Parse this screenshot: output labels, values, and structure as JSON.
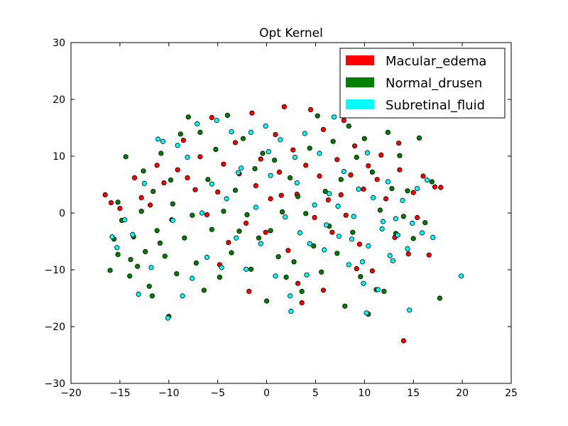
{
  "chart_data": {
    "type": "scatter",
    "title": "Opt Kernel",
    "xlabel": "",
    "ylabel": "",
    "xlim": [
      -20,
      25
    ],
    "ylim": [
      -30,
      30
    ],
    "xticks": [
      -20,
      -15,
      -10,
      -5,
      0,
      5,
      10,
      15,
      20,
      25
    ],
    "yticks": [
      -30,
      -20,
      -10,
      0,
      10,
      20,
      30
    ],
    "xtick_labels": [
      "−20",
      "−15",
      "−10",
      "−5",
      "0",
      "5",
      "10",
      "15",
      "20",
      "25"
    ],
    "ytick_labels": [
      "−30",
      "−20",
      "−10",
      "0",
      "10",
      "20",
      "30"
    ],
    "grid": false,
    "legend_position": "top-right",
    "series": [
      {
        "name": "Macular_edema",
        "color": "#ff0000",
        "points": [
          [
            -16.5,
            3.2
          ],
          [
            -15.9,
            1.8
          ],
          [
            -15.0,
            0.8
          ],
          [
            -13.5,
            6.2
          ],
          [
            -12.8,
            2.7
          ],
          [
            -11.9,
            1.4
          ],
          [
            -11.2,
            8.4
          ],
          [
            -10.5,
            5.3
          ],
          [
            -9.7,
            -1.2
          ],
          [
            -9.1,
            7.6
          ],
          [
            -8.5,
            12.8
          ],
          [
            -8.1,
            6.2
          ],
          [
            -7.3,
            4.1
          ],
          [
            -6.8,
            9.9
          ],
          [
            -6.1,
            -0.3
          ],
          [
            -5.6,
            16.8
          ],
          [
            -5.0,
            3.7
          ],
          [
            -4.4,
            8.6
          ],
          [
            -3.9,
            -5.2
          ],
          [
            -3.2,
            12.4
          ],
          [
            -2.8,
            6.9
          ],
          [
            -2.1,
            -1.8
          ],
          [
            -1.5,
            17.6
          ],
          [
            -1.1,
            4.8
          ],
          [
            -0.6,
            9.5
          ],
          [
            -0.1,
            -3.4
          ],
          [
            0.4,
            2.5
          ],
          [
            0.9,
            13.8
          ],
          [
            1.3,
            7.2
          ],
          [
            1.8,
            18.7
          ],
          [
            2.2,
            -6.6
          ],
          [
            2.7,
            11.1
          ],
          [
            3.1,
            3.3
          ],
          [
            3.6,
            -15.8
          ],
          [
            4.0,
            8.4
          ],
          [
            4.5,
            18.2
          ],
          [
            4.9,
            -0.8
          ],
          [
            5.4,
            6.5
          ],
          [
            5.8,
            14.7
          ],
          [
            6.3,
            2.3
          ],
          [
            6.7,
            -3.4
          ],
          [
            7.2,
            9.4
          ],
          [
            7.6,
            3.2
          ],
          [
            8.1,
            -0.4
          ],
          [
            8.6,
            6.7
          ],
          [
            9.0,
            11.8
          ],
          [
            9.5,
            -5.5
          ],
          [
            9.9,
            4.2
          ],
          [
            10.4,
            8.3
          ],
          [
            10.8,
            -10.2
          ],
          [
            11.3,
            5.9
          ],
          [
            11.7,
            10.2
          ],
          [
            12.2,
            2.5
          ],
          [
            12.6,
            17.8
          ],
          [
            13.1,
            -4.3
          ],
          [
            13.6,
            7.6
          ],
          [
            14.0,
            -22.5
          ],
          [
            14.5,
            -7.2
          ],
          [
            15.0,
            3.6
          ],
          [
            15.4,
            -0.8
          ],
          [
            16.0,
            6.5
          ],
          [
            16.6,
            -7.4
          ],
          [
            17.2,
            4.6
          ],
          [
            17.8,
            4.5
          ],
          [
            -1.8,
            -13.8
          ],
          [
            3.2,
            -12.4
          ],
          [
            5.8,
            -13.6
          ],
          [
            9.2,
            -9.8
          ],
          [
            13.5,
            12.3
          ],
          [
            1.5,
            3.1
          ],
          [
            -4.8,
            -9.1
          ],
          [
            7.9,
            16.3
          ]
        ]
      },
      {
        "name": "Normal_drusen",
        "color": "#008000",
        "points": [
          [
            -16.0,
            -10.1
          ],
          [
            -15.6,
            -4.6
          ],
          [
            -15.2,
            -7.3
          ],
          [
            -14.8,
            -1.3
          ],
          [
            -14.4,
            9.9
          ],
          [
            -14.0,
            -11.1
          ],
          [
            -13.6,
            -4.2
          ],
          [
            -13.2,
            -9.4
          ],
          [
            -12.8,
            0.3
          ],
          [
            -12.4,
            -6.8
          ],
          [
            -12.0,
            -12.9
          ],
          [
            -11.6,
            3.8
          ],
          [
            -11.2,
            -3.1
          ],
          [
            -10.8,
            10.5
          ],
          [
            -10.4,
            -7.6
          ],
          [
            -10.0,
            -18.2
          ],
          [
            -9.6,
            1.6
          ],
          [
            -9.2,
            -10.7
          ],
          [
            -8.8,
            13.9
          ],
          [
            -8.4,
            -4.4
          ],
          [
            -8.0,
            16.9
          ],
          [
            -7.6,
            -0.4
          ],
          [
            -7.2,
            -8.8
          ],
          [
            -6.8,
            14.2
          ],
          [
            -6.4,
            -13.6
          ],
          [
            -6.0,
            5.9
          ],
          [
            -5.6,
            -2.9
          ],
          [
            -5.2,
            11.2
          ],
          [
            -4.8,
            -11.3
          ],
          [
            -4.4,
            0.3
          ],
          [
            -4.0,
            17.2
          ],
          [
            -3.6,
            -7.0
          ],
          [
            -3.2,
            4.0
          ],
          [
            -2.8,
            -3.2
          ],
          [
            -2.4,
            13.1
          ],
          [
            -2.0,
            -0.3
          ],
          [
            -1.6,
            -9.9
          ],
          [
            -1.2,
            7.8
          ],
          [
            -0.8,
            -4.4
          ],
          [
            -0.4,
            10.5
          ],
          [
            0.0,
            -15.5
          ],
          [
            0.4,
            -3.1
          ],
          [
            0.8,
            9.3
          ],
          [
            1.2,
            -7.7
          ],
          [
            1.6,
            0.2
          ],
          [
            2.0,
            -11.3
          ],
          [
            2.4,
            6.2
          ],
          [
            2.8,
            -8.6
          ],
          [
            3.2,
            2.9
          ],
          [
            3.6,
            -13.8
          ],
          [
            4.0,
            -0.1
          ],
          [
            4.4,
            11.4
          ],
          [
            4.8,
            -5.8
          ],
          [
            5.2,
            17.1
          ],
          [
            5.6,
            -10.4
          ],
          [
            6.0,
            3.8
          ],
          [
            6.4,
            -2.3
          ],
          [
            6.8,
            12.6
          ],
          [
            7.2,
            -7.1
          ],
          [
            7.6,
            5.9
          ],
          [
            8.0,
            -16.4
          ],
          [
            8.4,
            15.3
          ],
          [
            8.8,
            -3.4
          ],
          [
            9.2,
            9.8
          ],
          [
            9.6,
            -11.2
          ],
          [
            10.0,
            13.1
          ],
          [
            10.4,
            -17.8
          ],
          [
            10.8,
            7.2
          ],
          [
            11.2,
            -13.5
          ],
          [
            11.6,
            0.5
          ],
          [
            12.0,
            -13.8
          ],
          [
            12.4,
            14.2
          ],
          [
            12.8,
            4.3
          ],
          [
            13.2,
            -3.6
          ],
          [
            13.6,
            10.1
          ],
          [
            14.0,
            -0.6
          ],
          [
            14.4,
            3.9
          ],
          [
            15.0,
            -4.5
          ],
          [
            15.6,
            13.2
          ],
          [
            16.2,
            -1.7
          ],
          [
            16.9,
            5.5
          ],
          [
            17.7,
            -15.0
          ],
          [
            -15.2,
            1.9
          ],
          [
            -13.9,
            -8.2
          ],
          [
            -12.6,
            7.4
          ],
          [
            -11.7,
            -14.6
          ],
          [
            -10.9,
            -5.3
          ],
          [
            -9.8,
            5.8
          ]
        ]
      },
      {
        "name": "Subretinal_fluid",
        "color": "#00ffff",
        "points": [
          [
            -15.8,
            -4.2
          ],
          [
            -15.3,
            -6.1
          ],
          [
            -14.5,
            -1.2
          ],
          [
            -13.7,
            -3.8
          ],
          [
            -13.1,
            -14.3
          ],
          [
            -12.5,
            5.2
          ],
          [
            -11.8,
            -9.6
          ],
          [
            -11.1,
            13.0
          ],
          [
            -10.6,
            12.6
          ],
          [
            -10.1,
            -18.5
          ],
          [
            -9.6,
            -1.3
          ],
          [
            -9.1,
            11.9
          ],
          [
            -8.6,
            -14.6
          ],
          [
            -8.1,
            9.8
          ],
          [
            -7.6,
            -11.5
          ],
          [
            -7.1,
            15.7
          ],
          [
            -6.6,
            0.0
          ],
          [
            -6.1,
            -7.8
          ],
          [
            -5.6,
            5.1
          ],
          [
            -5.1,
            16.3
          ],
          [
            -4.6,
            -9.6
          ],
          [
            -4.1,
            2.5
          ],
          [
            -3.6,
            14.3
          ],
          [
            -3.1,
            -4.4
          ],
          [
            -2.6,
            7.9
          ],
          [
            -2.1,
            -9.9
          ],
          [
            -1.6,
            14.2
          ],
          [
            -1.1,
            1.0
          ],
          [
            -0.6,
            -5.4
          ],
          [
            -0.1,
            15.3
          ],
          [
            0.4,
            6.6
          ],
          [
            0.9,
            -11.1
          ],
          [
            1.4,
            12.9
          ],
          [
            1.9,
            -0.7
          ],
          [
            2.4,
            -14.6
          ],
          [
            2.9,
            9.8
          ],
          [
            3.4,
            -3.5
          ],
          [
            3.9,
            14.0
          ],
          [
            4.4,
            -5.4
          ],
          [
            4.9,
            1.4
          ],
          [
            5.4,
            10.5
          ],
          [
            5.9,
            -6.5
          ],
          [
            6.4,
            3.4
          ],
          [
            6.9,
            16.9
          ],
          [
            7.4,
            -4.1
          ],
          [
            7.9,
            7.3
          ],
          [
            8.4,
            -9.1
          ],
          [
            8.9,
            -0.6
          ],
          [
            9.4,
            4.2
          ],
          [
            9.9,
            -12.4
          ],
          [
            10.4,
            -5.8
          ],
          [
            10.9,
            2.7
          ],
          [
            11.4,
            -13.5
          ],
          [
            11.9,
            -1.5
          ],
          [
            12.4,
            5.5
          ],
          [
            12.9,
            -8.4
          ],
          [
            13.4,
            -3.9
          ],
          [
            13.9,
            2.2
          ],
          [
            14.4,
            -6.3
          ],
          [
            14.9,
            -1.8
          ],
          [
            15.4,
            4.3
          ],
          [
            15.9,
            -3.5
          ],
          [
            16.4,
            5.8
          ],
          [
            17.0,
            -4.3
          ],
          [
            19.9,
            -11.1
          ],
          [
            14.6,
            -17.1
          ],
          [
            2.5,
            -17.3
          ],
          [
            10.2,
            -17.6
          ],
          [
            4.1,
            -10.9
          ],
          [
            8.7,
            -4.6
          ],
          [
            11.8,
            -2.8
          ],
          [
            13.2,
            -1.0
          ],
          [
            6.1,
            -2.1
          ],
          [
            7.3,
            1.2
          ],
          [
            9.8,
            -8.6
          ],
          [
            12.6,
            -7.5
          ],
          [
            -2.9,
            7.1
          ],
          [
            0.2,
            10.8
          ],
          [
            3.1,
            5.3
          ],
          [
            10.3,
            10.6
          ]
        ]
      }
    ]
  },
  "colors": {
    "background": "#ffffff",
    "axes_face": "#ffffff",
    "spine": "#000000",
    "marker_edge": "#000000"
  }
}
